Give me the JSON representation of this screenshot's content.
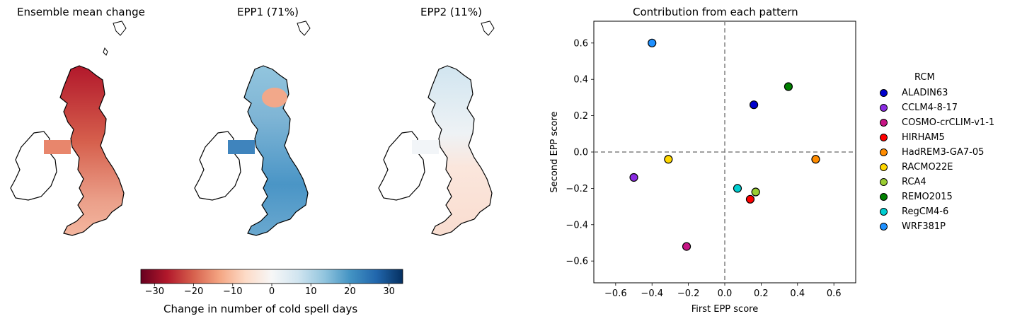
{
  "maps": {
    "titles": [
      "Ensemble mean change",
      "EPP1 (71%)",
      "EPP2 (11%)"
    ],
    "colorbar": {
      "label": "Change in number of cold spell days",
      "ticks": [
        "−30",
        "−20",
        "−10",
        "0",
        "10",
        "20",
        "30"
      ],
      "tick_values": [
        -30,
        -20,
        -10,
        0,
        10,
        20,
        30
      ],
      "range": [
        -33.5,
        33.5
      ],
      "colormap": "RdBu",
      "colors": [
        "#67001f",
        "#b2182b",
        "#d6604d",
        "#f4a582",
        "#fddbc7",
        "#f7f7f7",
        "#d1e5f0",
        "#92c5de",
        "#4393c3",
        "#2166ac",
        "#053061"
      ]
    }
  },
  "chart_data": {
    "type": "scatter",
    "title": "Contribution from each pattern",
    "xlabel": "First EPP score",
    "ylabel": "Second EPP score",
    "xlim": [
      -0.72,
      0.72
    ],
    "ylim": [
      -0.72,
      0.72
    ],
    "xticks": [
      "−0.6",
      "−0.4",
      "−0.2",
      "0.0",
      "0.2",
      "0.4",
      "0.6"
    ],
    "xtick_values": [
      -0.6,
      -0.4,
      -0.2,
      0.0,
      0.2,
      0.4,
      0.6
    ],
    "yticks": [
      "0.6",
      "0.4",
      "0.2",
      "0.0",
      "−0.2",
      "−0.4",
      "−0.6"
    ],
    "ytick_values": [
      0.6,
      0.4,
      0.2,
      0.0,
      -0.2,
      -0.4,
      -0.6
    ],
    "grid": false,
    "reference_lines": {
      "x": 0,
      "y": 0,
      "style": "dashed",
      "color": "#808080"
    },
    "legend": {
      "title": "RCM",
      "placement": "outside-right"
    },
    "series": [
      {
        "name": "ALADIN63",
        "color": "#0000cd",
        "x": 0.16,
        "y": 0.26
      },
      {
        "name": "CCLM4-8-17",
        "color": "#8a2be2",
        "x": -0.5,
        "y": -0.14
      },
      {
        "name": "COSMO-crCLIM-v1-1",
        "color": "#c71585",
        "x": -0.21,
        "y": -0.52
      },
      {
        "name": "HIRHAM5",
        "color": "#ff0000",
        "x": 0.14,
        "y": -0.26
      },
      {
        "name": "HadREM3-GA7-05",
        "color": "#ff8c00",
        "x": 0.5,
        "y": -0.04
      },
      {
        "name": "RACMO22E",
        "color": "#ffd700",
        "x": -0.31,
        "y": -0.04
      },
      {
        "name": "RCA4",
        "color": "#9acd32",
        "x": 0.17,
        "y": -0.22
      },
      {
        "name": "REMO2015",
        "color": "#008000",
        "x": 0.35,
        "y": 0.36
      },
      {
        "name": "RegCM4-6",
        "color": "#00ced1",
        "x": 0.07,
        "y": -0.2
      },
      {
        "name": "WRF381P",
        "color": "#1e90ff",
        "x": -0.4,
        "y": 0.6
      }
    ]
  }
}
